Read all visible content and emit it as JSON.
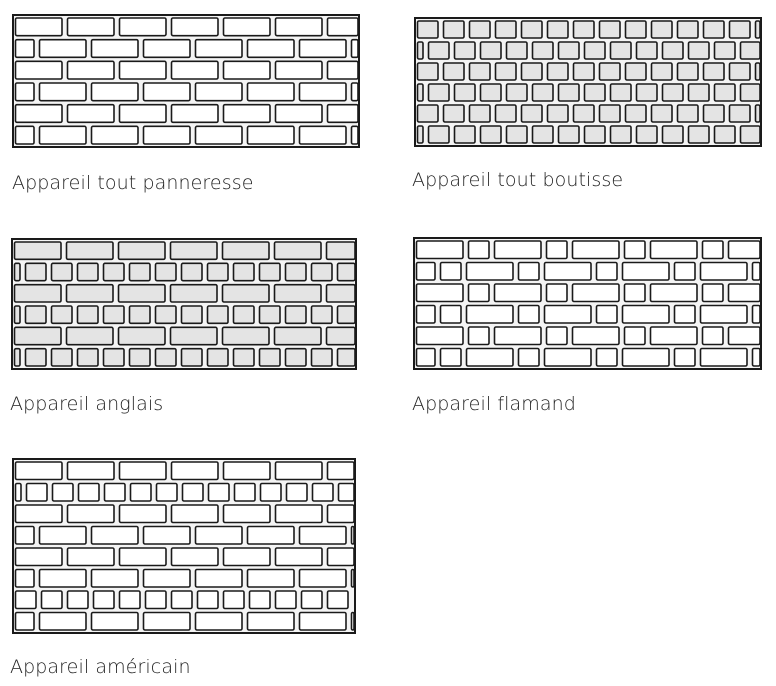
{
  "colors": {
    "mortar": "#f4f4f4",
    "outline": "#1a1a1a",
    "brick_light": "#ffffff",
    "brick_shaded": "#e4e4e4"
  },
  "walls": [
    {
      "id": "p1",
      "caption": "Appareil tout panneresse",
      "courses": [
        "S",
        "S",
        "S",
        "S",
        "S",
        "S"
      ],
      "shade": "light"
    },
    {
      "id": "p2",
      "caption": "Appareil tout boutisse",
      "courses": [
        "H",
        "H",
        "H",
        "H",
        "H",
        "H"
      ],
      "shade": "shaded"
    },
    {
      "id": "p3",
      "caption": "Appareil anglais",
      "courses": [
        "S",
        "H",
        "S",
        "H",
        "S",
        "H"
      ],
      "shade": "shaded"
    },
    {
      "id": "p4",
      "caption": "Appareil flamand",
      "courses": [
        "F",
        "F",
        "F",
        "F",
        "F",
        "F"
      ],
      "shade": "light"
    },
    {
      "id": "p5",
      "caption": "Appareil américain",
      "courses": [
        "S",
        "H",
        "S",
        "S",
        "S",
        "S",
        "H",
        "S"
      ],
      "shade": "light"
    }
  ]
}
